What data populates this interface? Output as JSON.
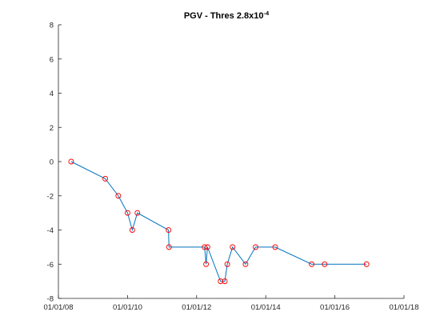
{
  "chart_data": {
    "type": "line",
    "title": {
      "main": "PGV - Thres 2.8x10",
      "superscript": "-4"
    },
    "xlabel": "",
    "ylabel": "",
    "x_axis": {
      "type": "date",
      "range": [
        "2008-01-01",
        "2018-01-01"
      ],
      "ticks": [
        "2008-01-01",
        "2010-01-01",
        "2012-01-01",
        "2014-01-01",
        "2016-01-01",
        "2018-01-01"
      ],
      "tick_labels": [
        "01/01/08",
        "01/01/10",
        "01/01/12",
        "01/01/14",
        "01/01/16",
        "01/01/18"
      ]
    },
    "y_axis": {
      "range": [
        -8,
        8
      ],
      "ticks": [
        -8,
        -6,
        -4,
        -2,
        0,
        2,
        4,
        6,
        8
      ],
      "tick_labels": [
        "-8",
        "-6",
        "-4",
        "-2",
        "0",
        "2",
        "4",
        "6",
        "8"
      ]
    },
    "grid": false,
    "series": [
      {
        "line_color": "#0072bd",
        "marker": "circle",
        "marker_color": "#ff0000",
        "points": [
          {
            "x": "2008-05-15",
            "y": 0
          },
          {
            "x": "2009-05-10",
            "y": -1
          },
          {
            "x": "2009-09-25",
            "y": -2
          },
          {
            "x": "2010-01-01",
            "y": -3
          },
          {
            "x": "2010-02-20",
            "y": -4
          },
          {
            "x": "2010-04-15",
            "y": -3
          },
          {
            "x": "2011-03-10",
            "y": -4
          },
          {
            "x": "2011-03-15",
            "y": -5
          },
          {
            "x": "2012-03-25",
            "y": -5
          },
          {
            "x": "2012-04-10",
            "y": -6
          },
          {
            "x": "2012-04-25",
            "y": -5
          },
          {
            "x": "2012-09-10",
            "y": -7
          },
          {
            "x": "2012-10-25",
            "y": -7
          },
          {
            "x": "2012-11-20",
            "y": -6
          },
          {
            "x": "2013-01-15",
            "y": -5
          },
          {
            "x": "2013-06-01",
            "y": -6
          },
          {
            "x": "2013-09-15",
            "y": -5
          },
          {
            "x": "2014-04-10",
            "y": -5
          },
          {
            "x": "2015-05-01",
            "y": -6
          },
          {
            "x": "2015-09-15",
            "y": -6
          },
          {
            "x": "2016-12-01",
            "y": -6
          }
        ]
      }
    ]
  }
}
